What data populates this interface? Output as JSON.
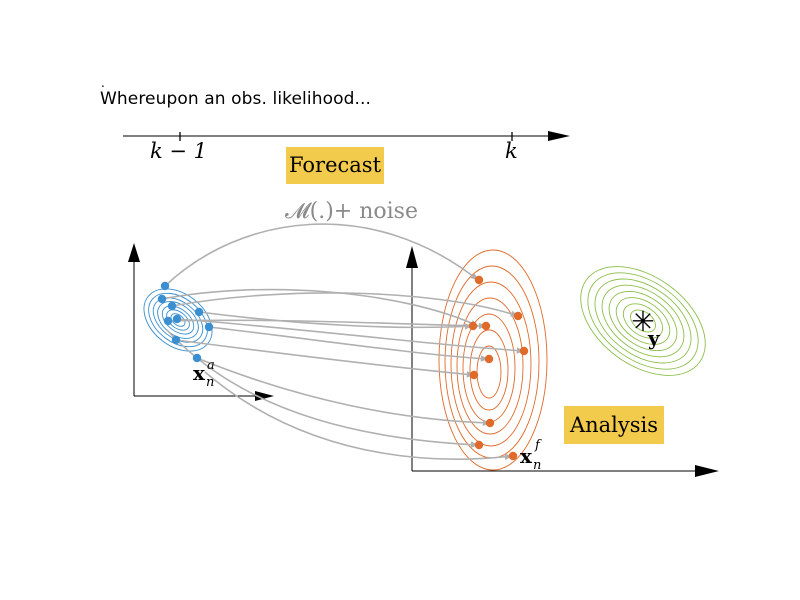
{
  "slide": {
    "bullet_mark": ".",
    "caption": "Whereupon an obs. likelihood..."
  },
  "timeline": {
    "left_tick": "k − 1",
    "right_tick": "k"
  },
  "labels": {
    "forecast": "Forecast",
    "model": "𝓜(.)+ noise",
    "analysis": "Analysis",
    "xa_base": "x",
    "xa_sub": "n",
    "xa_sup": "a",
    "xf_base": "x",
    "xf_sub": "n",
    "xf_sup": "f",
    "obs_symbol": "✳",
    "obs_label": "y"
  },
  "colors": {
    "analysis_ensemble": "#3a8fd0",
    "forecast_ensemble": "#e06a2a",
    "observation": "#8cbf4a",
    "highlight_box": "#f2cb4c",
    "trajectory": "#b0b0b0"
  }
}
